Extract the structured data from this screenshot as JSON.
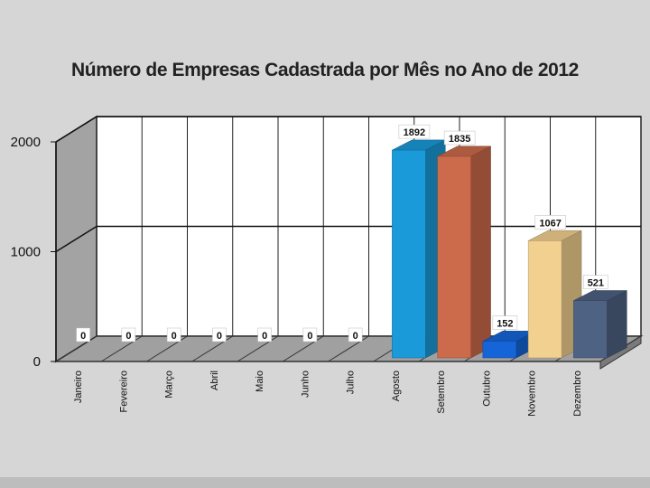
{
  "chart_data": {
    "type": "bar",
    "title": "Número de Empresas Cadastrada por Mês no Ano de 2012",
    "categories": [
      "Janeiro",
      "Fevereiro",
      "Março",
      "Abril",
      "Maio",
      "Junho",
      "Julho",
      "Agosto",
      "Setembro",
      "Outubro",
      "Novembro",
      "Dezembro"
    ],
    "values": [
      0,
      0,
      0,
      0,
      0,
      0,
      0,
      1892,
      1835,
      152,
      1067,
      521
    ],
    "value_labels": [
      "0",
      "0",
      "0",
      "0",
      "0",
      "0",
      "0",
      "1892",
      "1835",
      "152",
      "1067",
      "521"
    ],
    "bar_colors": {
      "Agosto": "#1a9ad9",
      "Setembro": "#cc6b4b",
      "Outubro": "#1565d8",
      "Novembro": "#f2d08f",
      "Dezembro": "#4e6283"
    },
    "y_ticks": [
      "0",
      "1000",
      "2000"
    ],
    "ylim": [
      0,
      2000
    ],
    "xlabel": "",
    "ylabel": "",
    "grid": true,
    "legend": "none",
    "style": "3d"
  }
}
